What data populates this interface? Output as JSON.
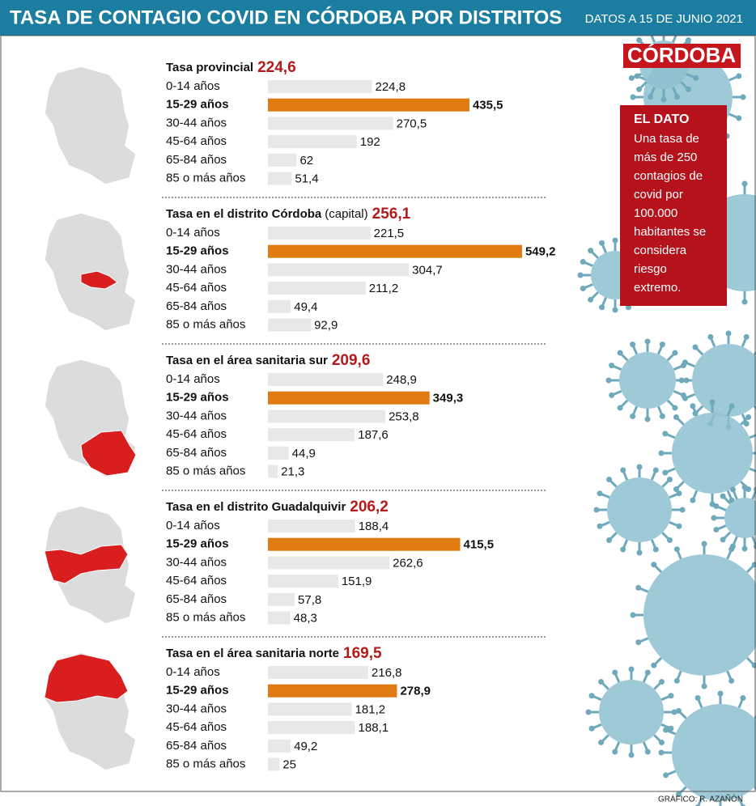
{
  "header": {
    "title": "TASA DE CONTAGIO COVID EN CÓRDOBA POR DISTRITOS",
    "date": "DATOS A 15 DE JUNIO 2021"
  },
  "brand": "CÓRDOBA",
  "note": {
    "title": "EL DATO",
    "lines": [
      "Una tasa de",
      "más de 250",
      "contagios de",
      "covid por",
      "100.000",
      "habitantes se",
      "considera",
      "riesgo",
      "extremo."
    ]
  },
  "credit": "GRÁFICO: R. AZAÑÓN",
  "chart_data": [
    {
      "type": "bar",
      "title": "Tasa provincial",
      "rate": {
        "value": 224.6,
        "label": "224,6"
      },
      "categories": [
        "0-14 años",
        "15-29 años",
        "30-44 años",
        "45-64 años",
        "65-84 años",
        "85 o más años"
      ],
      "values": [
        224.8,
        435.5,
        270.5,
        192,
        62,
        51.4
      ],
      "value_labels": [
        "224,8",
        "435,5",
        "270,5",
        "192",
        "62",
        "51,4"
      ],
      "colors": [
        "#e8e8e8",
        "#e07b12",
        "#e8e8e8",
        "#e8e8e8",
        "#e8e8e8",
        "#e8e8e8"
      ],
      "xlim": [
        0,
        600
      ]
    },
    {
      "type": "bar",
      "title": "Tasa en el distrito Córdoba",
      "subtitle": "(capital)",
      "rate": {
        "value": 256.1,
        "label": "256,1"
      },
      "categories": [
        "0-14 años",
        "15-29 años",
        "30-44 años",
        "45-64 años",
        "65-84 años",
        "85 o más años"
      ],
      "values": [
        221.5,
        549.2,
        304.7,
        211.2,
        49.4,
        92.9
      ],
      "value_labels": [
        "221,5",
        "549,2",
        "304,7",
        "211,2",
        "49,4",
        "92,9"
      ],
      "colors": [
        "#e8e8e8",
        "#e07b12",
        "#e8e8e8",
        "#e8e8e8",
        "#e8e8e8",
        "#e8e8e8"
      ],
      "xlim": [
        0,
        600
      ]
    },
    {
      "type": "bar",
      "title": "Tasa en el área sanitaria sur",
      "rate": {
        "value": 209.6,
        "label": "209,6"
      },
      "categories": [
        "0-14 años",
        "15-29 años",
        "30-44 años",
        "45-64 años",
        "65-84 años",
        "85 o más años"
      ],
      "values": [
        248.9,
        349.3,
        253.8,
        187.6,
        44.9,
        21.3
      ],
      "value_labels": [
        "248,9",
        "349,3",
        "253,8",
        "187,6",
        "44,9",
        "21,3"
      ],
      "colors": [
        "#e8e8e8",
        "#e07b12",
        "#e8e8e8",
        "#e8e8e8",
        "#e8e8e8",
        "#e8e8e8"
      ],
      "xlim": [
        0,
        600
      ]
    },
    {
      "type": "bar",
      "title": "Tasa en el distrito Guadalquivir",
      "rate": {
        "value": 206.2,
        "label": "206,2"
      },
      "categories": [
        "0-14 años",
        "15-29 años",
        "30-44 años",
        "45-64 años",
        "65-84 años",
        "85 o más años"
      ],
      "values": [
        188.4,
        415.5,
        262.6,
        151.9,
        57.8,
        48.3
      ],
      "value_labels": [
        "188,4",
        "415,5",
        "262,6",
        "151,9",
        "57,8",
        "48,3"
      ],
      "colors": [
        "#e8e8e8",
        "#e07b12",
        "#e8e8e8",
        "#e8e8e8",
        "#e8e8e8",
        "#e8e8e8"
      ],
      "xlim": [
        0,
        600
      ]
    },
    {
      "type": "bar",
      "title": "Tasa en el área sanitaria norte",
      "rate": {
        "value": 169.5,
        "label": "169,5"
      },
      "categories": [
        "0-14 años",
        "15-29 años",
        "30-44 años",
        "45-64 años",
        "65-84 años",
        "85 o más años"
      ],
      "values": [
        216.8,
        278.9,
        181.2,
        188.1,
        49.2,
        25
      ],
      "value_labels": [
        "216,8",
        "278,9",
        "181,2",
        "188,1",
        "49,2",
        "25"
      ],
      "colors": [
        "#e8e8e8",
        "#e07b12",
        "#e8e8e8",
        "#e8e8e8",
        "#e8e8e8",
        "#e8e8e8"
      ],
      "xlim": [
        0,
        600
      ]
    }
  ]
}
